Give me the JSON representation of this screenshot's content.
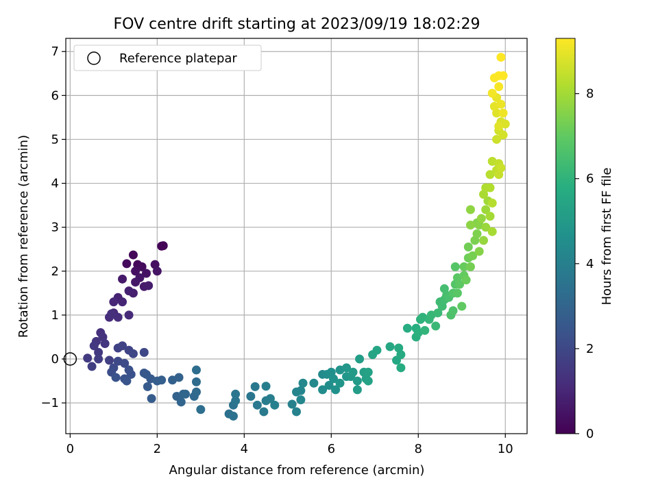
{
  "chart_data": {
    "type": "scatter",
    "title": "FOV centre drift starting at 2023/09/19 18:02:29",
    "xlabel": "Angular distance from reference (arcmin)",
    "ylabel": "Rotation from reference (arcmin)",
    "xlim": [
      -0.1,
      10.5
    ],
    "ylim": [
      -1.7,
      7.3
    ],
    "xticks": [
      "0",
      "2",
      "4",
      "6",
      "8",
      "10"
    ],
    "yticks": [
      "−1",
      "0",
      "1",
      "2",
      "3",
      "4",
      "5",
      "6",
      "7"
    ],
    "grid": true,
    "legend": {
      "position": "top-left",
      "entries": [
        "Reference platepar"
      ]
    },
    "reference_point": {
      "x": 0,
      "y": 0
    },
    "colorbar": {
      "label": "Hours from first FF file",
      "colormap": "viridis",
      "range": [
        0,
        9.3
      ],
      "ticks": [
        "0",
        "2",
        "4",
        "6",
        "8"
      ]
    },
    "series": [
      {
        "points": [
          [
            2.1,
            2.57,
            0.05
          ],
          [
            2.14,
            2.58,
            0.1
          ],
          [
            1.45,
            2.37,
            0.15
          ],
          [
            1.55,
            2.15,
            0.2
          ],
          [
            1.3,
            2.17,
            0.25
          ],
          [
            1.65,
            2.1,
            0.3
          ],
          [
            1.95,
            2.15,
            0.35
          ],
          [
            1.5,
            2.0,
            0.4
          ],
          [
            1.75,
            1.95,
            0.45
          ],
          [
            2.0,
            2.0,
            0.5
          ],
          [
            1.6,
            1.85,
            0.55
          ],
          [
            1.5,
            1.75,
            0.6
          ],
          [
            1.2,
            1.82,
            0.65
          ],
          [
            1.7,
            1.65,
            0.7
          ],
          [
            1.8,
            1.67,
            0.75
          ],
          [
            1.45,
            1.5,
            0.8
          ],
          [
            1.35,
            1.55,
            0.85
          ],
          [
            1.1,
            1.4,
            0.9
          ],
          [
            1.2,
            1.3,
            0.95
          ],
          [
            1.0,
            1.3,
            1.0
          ],
          [
            1.0,
            1.05,
            1.05
          ],
          [
            1.35,
            1.0,
            1.1
          ],
          [
            0.9,
            0.95,
            1.15
          ],
          [
            1.1,
            0.95,
            1.2
          ],
          [
            0.95,
            1.03,
            1.25
          ],
          [
            0.7,
            0.6,
            1.3
          ],
          [
            0.75,
            0.5,
            1.35
          ],
          [
            0.6,
            0.4,
            1.4
          ],
          [
            0.8,
            0.35,
            1.45
          ],
          [
            0.55,
            0.3,
            1.5
          ],
          [
            0.65,
            0.15,
            1.55
          ],
          [
            0.4,
            0.02,
            1.6
          ],
          [
            0.65,
            0.0,
            1.65
          ],
          [
            0.5,
            -0.17,
            1.7
          ],
          [
            0.9,
            -0.03,
            1.75
          ],
          [
            1.1,
            0.25,
            1.8
          ],
          [
            1.2,
            0.3,
            1.85
          ],
          [
            1.35,
            0.2,
            1.9
          ],
          [
            1.45,
            0.12,
            1.95
          ],
          [
            1.7,
            0.15,
            2.0
          ],
          [
            1.1,
            -0.05,
            2.05
          ],
          [
            1.25,
            -0.1,
            2.1
          ],
          [
            1.0,
            -0.2,
            2.15
          ],
          [
            0.95,
            -0.3,
            2.2
          ],
          [
            1.35,
            -0.25,
            2.25
          ],
          [
            1.4,
            -0.35,
            2.3
          ],
          [
            1.25,
            -0.45,
            2.35
          ],
          [
            1.05,
            -0.42,
            2.4
          ],
          [
            1.3,
            -0.5,
            2.45
          ],
          [
            1.7,
            -0.32,
            2.5
          ],
          [
            1.75,
            -0.35,
            2.55
          ],
          [
            1.85,
            -0.45,
            2.6
          ],
          [
            1.78,
            -0.63,
            2.65
          ],
          [
            1.87,
            -0.9,
            2.7
          ],
          [
            2.0,
            -0.5,
            2.75
          ],
          [
            2.1,
            -0.48,
            2.8
          ],
          [
            2.35,
            -0.48,
            2.85
          ],
          [
            2.5,
            -0.42,
            2.9
          ],
          [
            2.45,
            -0.85,
            2.95
          ],
          [
            2.55,
            -0.98,
            3.0
          ],
          [
            2.6,
            -0.8,
            3.05
          ],
          [
            2.65,
            -0.8,
            3.1
          ],
          [
            2.85,
            -0.85,
            3.15
          ],
          [
            2.9,
            -0.75,
            3.2
          ],
          [
            2.9,
            -0.52,
            3.25
          ],
          [
            2.9,
            -0.25,
            3.3
          ],
          [
            3.0,
            -1.15,
            3.35
          ],
          [
            3.65,
            -1.25,
            3.4
          ],
          [
            3.75,
            -1.3,
            3.45
          ],
          [
            3.75,
            -1.05,
            3.5
          ],
          [
            3.8,
            -0.95,
            3.55
          ],
          [
            3.8,
            -0.8,
            3.6
          ],
          [
            4.15,
            -0.85,
            3.65
          ],
          [
            4.25,
            -0.63,
            3.7
          ],
          [
            4.3,
            -1.05,
            3.75
          ],
          [
            4.45,
            -1.2,
            3.8
          ],
          [
            4.5,
            -0.95,
            3.85
          ],
          [
            4.5,
            -0.62,
            3.9
          ],
          [
            4.6,
            -0.9,
            3.95
          ],
          [
            4.7,
            -1.05,
            4.0
          ],
          [
            5.1,
            -1.03,
            4.05
          ],
          [
            5.2,
            -1.2,
            4.1
          ],
          [
            5.2,
            -0.75,
            4.15
          ],
          [
            5.3,
            -0.72,
            4.2
          ],
          [
            5.3,
            -0.93,
            4.25
          ],
          [
            5.35,
            -0.55,
            4.3
          ],
          [
            5.6,
            -0.55,
            4.35
          ],
          [
            5.8,
            -0.35,
            4.4
          ],
          [
            5.8,
            -0.7,
            4.45
          ],
          [
            5.9,
            -0.35,
            4.5
          ],
          [
            5.95,
            -0.6,
            4.55
          ],
          [
            6.0,
            -0.3,
            4.6
          ],
          [
            6.05,
            -0.45,
            4.65
          ],
          [
            6.1,
            -0.7,
            4.7
          ],
          [
            6.2,
            -0.25,
            4.75
          ],
          [
            6.2,
            -0.55,
            4.8
          ],
          [
            6.35,
            -0.4,
            4.85
          ],
          [
            6.35,
            -0.2,
            4.9
          ],
          [
            6.45,
            -0.4,
            4.95
          ],
          [
            6.5,
            -0.3,
            5.0
          ],
          [
            6.6,
            -0.5,
            5.05
          ],
          [
            6.6,
            -0.7,
            5.1
          ],
          [
            6.65,
            0.0,
            5.15
          ],
          [
            6.75,
            -0.3,
            5.2
          ],
          [
            6.8,
            -0.45,
            5.25
          ],
          [
            6.85,
            -0.3,
            5.3
          ],
          [
            6.85,
            -0.5,
            5.35
          ],
          [
            6.95,
            0.1,
            5.4
          ],
          [
            7.05,
            0.2,
            5.45
          ],
          [
            7.35,
            0.28,
            5.5
          ],
          [
            7.5,
            -0.03,
            5.55
          ],
          [
            7.55,
            0.25,
            5.6
          ],
          [
            7.6,
            0.1,
            5.65
          ],
          [
            7.6,
            -0.2,
            5.7
          ],
          [
            7.75,
            0.7,
            5.75
          ],
          [
            7.95,
            0.7,
            5.8
          ],
          [
            7.95,
            0.5,
            5.85
          ],
          [
            8.0,
            0.6,
            5.9
          ],
          [
            8.05,
            0.9,
            5.95
          ],
          [
            8.1,
            0.95,
            6.0
          ],
          [
            8.15,
            0.65,
            6.05
          ],
          [
            8.25,
            0.9,
            6.1
          ],
          [
            8.3,
            1.0,
            6.15
          ],
          [
            8.4,
            0.75,
            6.2
          ],
          [
            8.45,
            1.05,
            6.25
          ],
          [
            8.5,
            1.3,
            6.3
          ],
          [
            8.55,
            1.2,
            6.35
          ],
          [
            8.6,
            1.35,
            6.4
          ],
          [
            8.6,
            1.6,
            6.45
          ],
          [
            8.65,
            1.45,
            6.5
          ],
          [
            8.7,
            1.4,
            6.55
          ],
          [
            8.75,
            1.0,
            6.6
          ],
          [
            8.8,
            1.1,
            6.65
          ],
          [
            8.8,
            1.5,
            6.7
          ],
          [
            8.85,
            1.7,
            6.75
          ],
          [
            8.85,
            2.1,
            6.8
          ],
          [
            8.9,
            1.5,
            6.85
          ],
          [
            8.9,
            1.85,
            6.9
          ],
          [
            8.95,
            1.7,
            6.95
          ],
          [
            9.0,
            1.2,
            7.0
          ],
          [
            9.05,
            1.9,
            7.05
          ],
          [
            9.05,
            2.1,
            7.1
          ],
          [
            9.1,
            1.8,
            7.15
          ],
          [
            9.15,
            2.3,
            7.2
          ],
          [
            9.15,
            2.55,
            7.25
          ],
          [
            9.2,
            2.1,
            7.3
          ],
          [
            9.25,
            2.35,
            7.35
          ],
          [
            9.3,
            2.7,
            7.4
          ],
          [
            9.35,
            2.85,
            7.45
          ],
          [
            9.35,
            3.1,
            7.5
          ],
          [
            9.4,
            2.45,
            7.55
          ],
          [
            9.4,
            3.05,
            7.6
          ],
          [
            9.2,
            3.05,
            7.65
          ],
          [
            9.2,
            3.4,
            7.7
          ],
          [
            9.45,
            3.2,
            7.75
          ],
          [
            9.5,
            2.7,
            7.8
          ],
          [
            9.55,
            3.0,
            7.85
          ],
          [
            9.55,
            3.4,
            7.9
          ],
          [
            9.6,
            3.6,
            7.95
          ],
          [
            9.65,
            3.25,
            8.0
          ],
          [
            9.7,
            2.9,
            8.05
          ],
          [
            9.5,
            3.75,
            8.1
          ],
          [
            9.55,
            3.9,
            8.15
          ],
          [
            9.65,
            3.9,
            8.2
          ],
          [
            9.7,
            3.55,
            8.25
          ],
          [
            9.65,
            4.2,
            8.3
          ],
          [
            9.7,
            4.5,
            8.35
          ],
          [
            9.8,
            4.3,
            8.4
          ],
          [
            9.85,
            4.45,
            8.45
          ],
          [
            9.85,
            4.2,
            8.5
          ],
          [
            9.9,
            4.35,
            8.55
          ],
          [
            9.8,
            5.0,
            8.6
          ],
          [
            9.85,
            5.2,
            8.65
          ],
          [
            9.95,
            5.1,
            8.7
          ],
          [
            9.9,
            5.4,
            8.75
          ],
          [
            10.0,
            5.35,
            8.8
          ],
          [
            9.8,
            5.6,
            8.85
          ],
          [
            9.85,
            5.3,
            8.9
          ],
          [
            9.75,
            5.75,
            8.95
          ],
          [
            9.8,
            5.95,
            9.0
          ],
          [
            9.9,
            5.8,
            9.05
          ],
          [
            9.95,
            5.6,
            9.1
          ],
          [
            9.7,
            6.05,
            9.15
          ],
          [
            9.85,
            6.2,
            9.2
          ],
          [
            9.75,
            6.4,
            9.25
          ],
          [
            9.85,
            6.45,
            9.28
          ],
          [
            9.95,
            6.45,
            9.3
          ],
          [
            9.9,
            6.87,
            9.3
          ]
        ]
      }
    ]
  }
}
